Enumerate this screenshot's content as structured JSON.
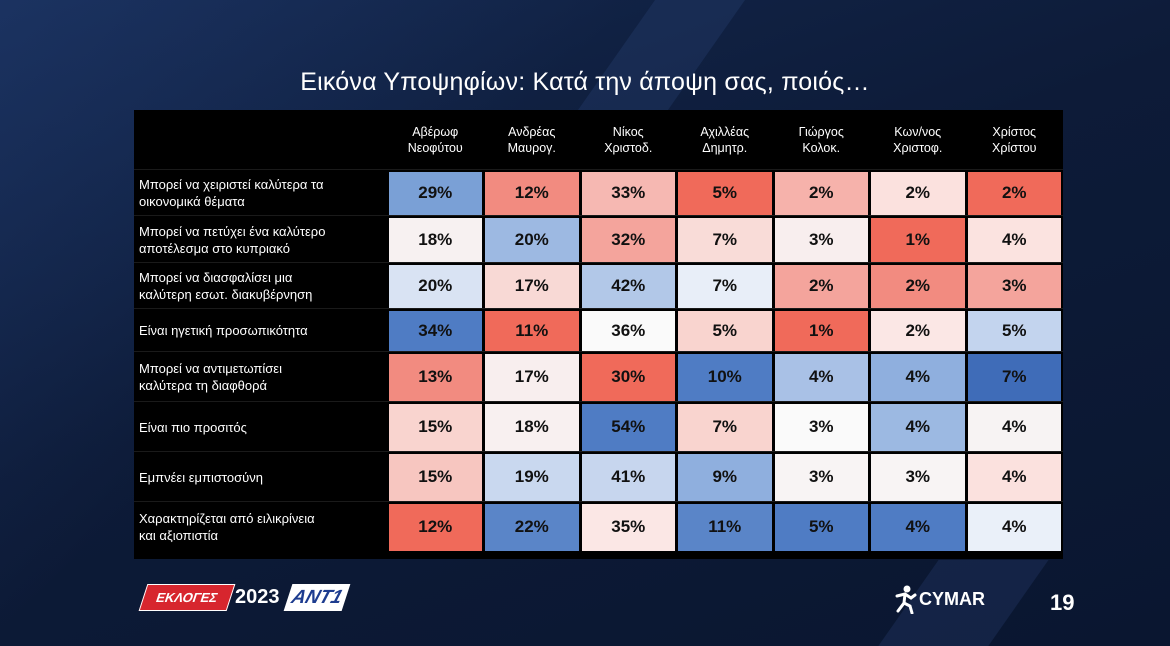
{
  "title": "Εικόνα Υποψηφίων: Κατά την άποψη σας, ποιός…",
  "chart_data": {
    "type": "heatmap",
    "columns": [
      [
        "Αβέρωφ",
        "Νεοφύτου"
      ],
      [
        "Ανδρέας",
        "Μαυρογ."
      ],
      [
        "Νίκος",
        "Χριστοδ."
      ],
      [
        "Αχιλλέας",
        "Δημητρ."
      ],
      [
        "Γιώργος",
        "Κολοκ."
      ],
      [
        "Κων/νος",
        "Χριστοφ."
      ],
      [
        "Χρίστος",
        "Χρίστου"
      ]
    ],
    "rows": [
      {
        "label": [
          "Μπορεί να χειριστεί καλύτερα τα",
          "οικονομικά θέματα"
        ],
        "values": [
          "29%",
          "12%",
          "33%",
          "5%",
          "2%",
          "2%",
          "2%"
        ],
        "colors": [
          "#7aa0d6",
          "#f28b80",
          "#f6b8b2",
          "#f06a5a",
          "#f6b2ab",
          "#fbe1de",
          "#f06a5a"
        ]
      },
      {
        "label": [
          "Μπορεί να πετύχει ένα καλύτερο",
          "αποτέλεσμα στο κυπριακό"
        ],
        "values": [
          "18%",
          "20%",
          "32%",
          "7%",
          "3%",
          "1%",
          "4%"
        ],
        "colors": [
          "#f7f1f1",
          "#9db9e2",
          "#f4a49c",
          "#f9dcd8",
          "#f8eeee",
          "#f06a5a",
          "#fbe3e0"
        ]
      },
      {
        "label": [
          "Μπορεί να διασφαλίσει μια",
          "καλύτερη εσωτ. διακυβέρνηση"
        ],
        "values": [
          "20%",
          "17%",
          "42%",
          "7%",
          "2%",
          "2%",
          "3%"
        ],
        "colors": [
          "#d9e3f3",
          "#f8d9d5",
          "#b2c8e8",
          "#e8eef8",
          "#f4a49c",
          "#f28b80",
          "#f4a49c"
        ]
      },
      {
        "label": [
          "Είναι ηγετική προσωπικότητα"
        ],
        "values": [
          "34%",
          "11%",
          "36%",
          "5%",
          "1%",
          "2%",
          "5%"
        ],
        "colors": [
          "#4f7cc4",
          "#f06a5a",
          "#fafafa",
          "#f9d4cf",
          "#f06a5a",
          "#fbe7e5",
          "#c3d4ee"
        ]
      },
      {
        "label": [
          "Μπορεί να αντιμετωπίσει",
          "καλύτερα τη διαφθορά"
        ],
        "values": [
          "13%",
          "17%",
          "30%",
          "10%",
          "4%",
          "4%",
          "7%"
        ],
        "colors": [
          "#f28b80",
          "#f8eeee",
          "#f06a5a",
          "#4f7cc4",
          "#a9c1e6",
          "#8fafde",
          "#3f6cb8"
        ]
      },
      {
        "label": [
          "Είναι πιο προσιτός"
        ],
        "values": [
          "15%",
          "18%",
          "54%",
          "7%",
          "3%",
          "4%",
          "4%"
        ],
        "colors": [
          "#f9d4cf",
          "#f8f0f0",
          "#4f7cc4",
          "#f9d4cf",
          "#fafafa",
          "#9cb9e2",
          "#f7f3f3"
        ]
      },
      {
        "label": [
          "Εμπνέει εμπιστοσύνη"
        ],
        "values": [
          "15%",
          "19%",
          "41%",
          "9%",
          "3%",
          "3%",
          "4%"
        ],
        "colors": [
          "#f7c6c0",
          "#c9d8ef",
          "#c7d6ee",
          "#8fafde",
          "#f8f4f4",
          "#f8f4f4",
          "#fbe1de"
        ]
      },
      {
        "label": [
          "Χαρακτηρίζεται από ειλικρίνεια",
          "και αξιοπιστία"
        ],
        "values": [
          "12%",
          "22%",
          "35%",
          "11%",
          "5%",
          "4%",
          "4%"
        ],
        "colors": [
          "#f06a5a",
          "#5a85c8",
          "#fbe7e5",
          "#5a85c8",
          "#4f7cc4",
          "#4f7cc4",
          "#eaf0f9"
        ]
      }
    ]
  },
  "footer": {
    "elections_label": "ΕΚΛΟΓΕΣ",
    "year": "2023",
    "channel": "ΑΝΤ1",
    "pollster": "CYMAR",
    "page_number": "19"
  }
}
